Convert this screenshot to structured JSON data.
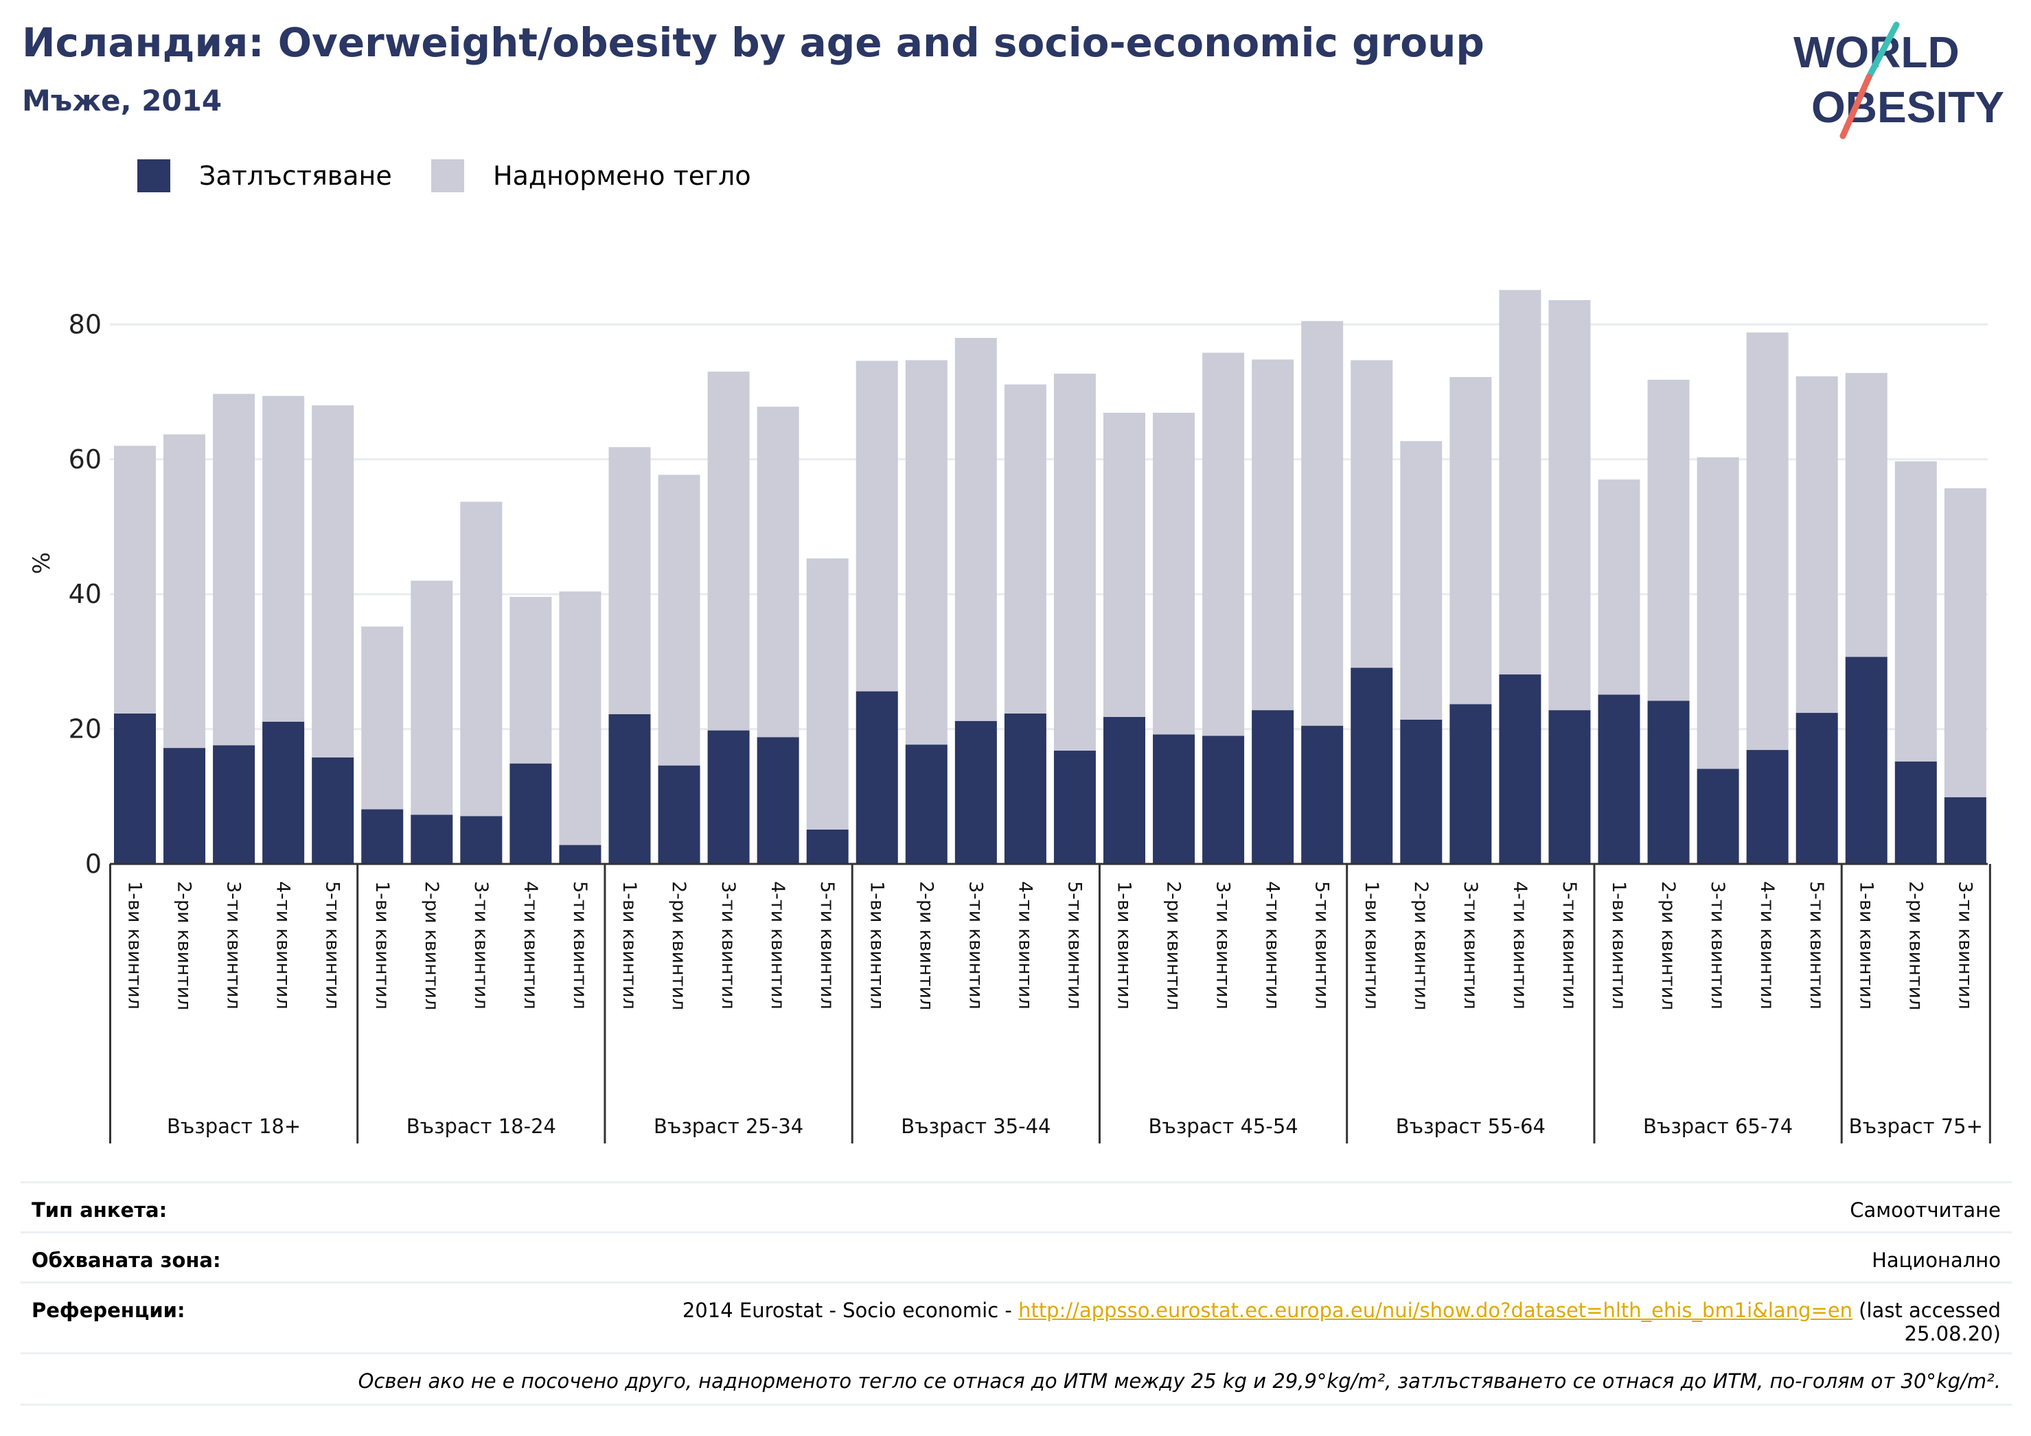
{
  "header": {
    "title": "Исландия: Overweight/obesity by age and socio-economic group",
    "subtitle": "Мъже, 2014"
  },
  "logo": {
    "line1": "WORLD",
    "line2": "OBESITY"
  },
  "colors": {
    "obesity": "#2b3764",
    "overweight": "#cbccd8",
    "grid": "#e9ebf0",
    "axis": "#333333",
    "link": "#e0a800"
  },
  "chart_data": {
    "type": "bar",
    "stacked": true,
    "ylabel": "%",
    "ylim": [
      0,
      90
    ],
    "yticks": [
      0,
      20,
      40,
      60,
      80
    ],
    "grid": true,
    "legend_position": "top-left",
    "groups": [
      {
        "label": "Възраст 18+",
        "categories": [
          "1-ви квинтил",
          "2-ри квинтил",
          "3-ти квинтил",
          "4-ти квинтил",
          "5-ти квинтил"
        ]
      },
      {
        "label": "Възраст 18-24",
        "categories": [
          "1-ви квинтил",
          "2-ри квинтил",
          "3-ти квинтил",
          "4-ти квинтил",
          "5-ти квинтил"
        ]
      },
      {
        "label": "Възраст 25-34",
        "categories": [
          "1-ви квинтил",
          "2-ри квинтил",
          "3-ти квинтил",
          "4-ти квинтил",
          "5-ти квинтил"
        ]
      },
      {
        "label": "Възраст 35-44",
        "categories": [
          "1-ви квинтил",
          "2-ри квинтил",
          "3-ти квинтил",
          "4-ти квинтил",
          "5-ти квинтил"
        ]
      },
      {
        "label": "Възраст 45-54",
        "categories": [
          "1-ви квинтил",
          "2-ри квинтил",
          "3-ти квинтил",
          "4-ти квинтил",
          "5-ти квинтил"
        ]
      },
      {
        "label": "Възраст 55-64",
        "categories": [
          "1-ви квинтил",
          "2-ри квинтил",
          "3-ти квинтил",
          "4-ти квинтил",
          "5-ти квинтил"
        ]
      },
      {
        "label": "Възраст 65-74",
        "categories": [
          "1-ви квинтил",
          "2-ри квинтил",
          "3-ти квинтил",
          "4-ти квинтил",
          "5-ти квинтил"
        ]
      },
      {
        "label": "Възраст 75+",
        "categories": [
          "1-ви квинтил",
          "2-ри квинтил",
          "3-ти квинтил"
        ]
      }
    ],
    "series": [
      {
        "name": "Затлъстяване",
        "values": [
          22.3,
          17.2,
          17.6,
          21.1,
          15.8,
          8.1,
          7.3,
          7.1,
          14.9,
          2.8,
          22.2,
          14.6,
          19.8,
          18.8,
          5.1,
          25.6,
          17.7,
          21.2,
          22.3,
          16.8,
          21.8,
          19.2,
          19.0,
          22.8,
          20.5,
          29.1,
          21.4,
          23.7,
          28.1,
          22.8,
          25.1,
          24.2,
          14.1,
          16.9,
          22.4,
          30.7,
          15.2,
          9.9
        ]
      },
      {
        "name": "Наднормено тегло",
        "values": [
          39.7,
          46.5,
          52.1,
          48.3,
          52.2,
          27.1,
          34.7,
          46.6,
          24.7,
          37.6,
          39.6,
          43.1,
          53.2,
          49.0,
          40.2,
          49.0,
          57.0,
          56.8,
          48.8,
          55.9,
          45.1,
          47.7,
          56.8,
          52.0,
          60.0,
          45.6,
          41.3,
          48.5,
          57.0,
          60.8,
          31.9,
          47.6,
          46.2,
          61.9,
          49.9,
          42.1,
          44.5,
          45.8
        ]
      }
    ]
  },
  "info": {
    "survey_label": "Тип анкета:",
    "survey_value": "Самоотчитане",
    "area_label": "Обхваната зона:",
    "area_value": "Национално",
    "refs_label": "Референции:",
    "refs_prefix": "2014 Eurostat - Socio economic - ",
    "refs_link": "http://appsso.eurostat.ec.europa.eu/nui/show.do?dataset=hlth_ehis_bm1i&lang=en",
    "refs_suffix": " (last accessed",
    "refs_date": "25.08.20)",
    "note": "Освен ако не е посочено друго, наднорменото тегло се отнася до ИТМ между 25 kg и 29,9°kg/m², затлъстяването се отнася до ИТМ, по-голям от 30°kg/m²."
  }
}
